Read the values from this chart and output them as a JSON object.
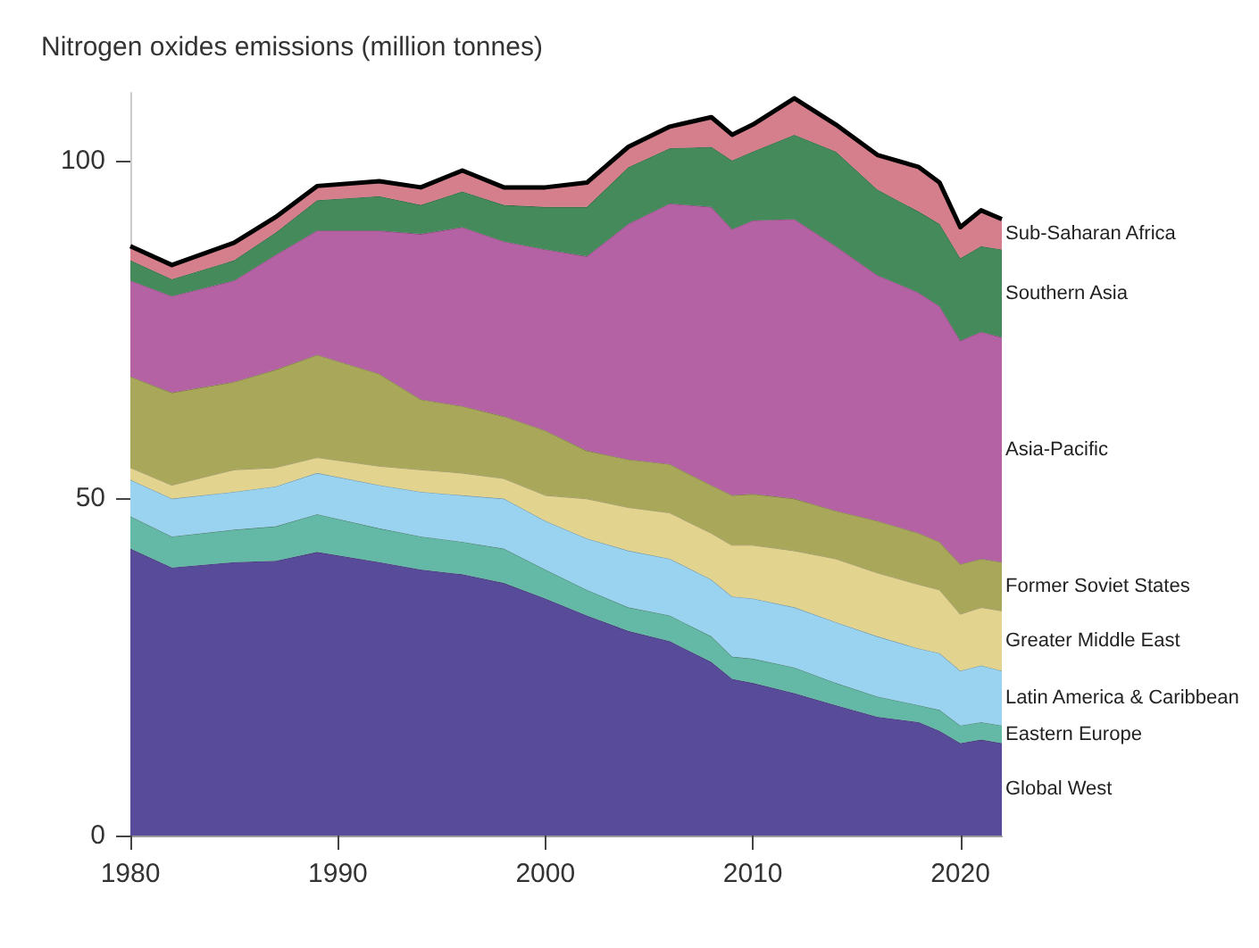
{
  "chart_data": {
    "type": "area",
    "stacked": true,
    "title": "Nitrogen oxides emissions (million tonnes)",
    "x": [
      1980,
      1982,
      1985,
      1987,
      1989,
      1992,
      1994,
      1996,
      1998,
      2000,
      2002,
      2004,
      2006,
      2008,
      2009,
      2010,
      2012,
      2014,
      2016,
      2018,
      2019,
      2020,
      2021,
      2022
    ],
    "xlim": [
      1980,
      2022
    ],
    "xticks": [
      1980,
      1990,
      2000,
      2010,
      2020
    ],
    "ylim": [
      0,
      110
    ],
    "yticks": [
      0,
      50,
      100
    ],
    "grid": false,
    "series": [
      {
        "name": "Global West",
        "color": "#574b9a",
        "values": [
          42.5,
          39.7,
          40.5,
          40.7,
          42,
          40.5,
          39.4,
          38.7,
          37.4,
          35.1,
          32.6,
          30.3,
          28.8,
          25.7,
          23.2,
          22.6,
          21.1,
          19.3,
          17.6,
          16.8,
          15.5,
          13.7,
          14.2,
          13.7
        ]
      },
      {
        "name": "Eastern Europe",
        "color": "#64b8a6",
        "values": [
          4.8,
          4.6,
          4.8,
          5.1,
          5.6,
          5,
          4.9,
          4.8,
          5.1,
          4.3,
          3.8,
          3.5,
          3.8,
          3.8,
          3.3,
          3.6,
          3.8,
          3.3,
          3,
          2.5,
          3.1,
          2.6,
          2.6,
          2.6
        ]
      },
      {
        "name": "Latin America & Caribbean",
        "color": "#9ad3f0",
        "values": [
          5.4,
          5.6,
          5.6,
          5.9,
          6.1,
          6.4,
          6.6,
          6.9,
          7.4,
          7.2,
          7.6,
          8.4,
          8.4,
          8.4,
          8.9,
          8.9,
          8.9,
          9,
          8.9,
          8.4,
          8.4,
          8.1,
          8.4,
          8.1
        ]
      },
      {
        "name": "Greater Middle East",
        "color": "#e2d48e",
        "values": [
          1.8,
          2,
          3.3,
          2.8,
          2.3,
          2.8,
          3.3,
          3.3,
          3,
          3.8,
          5.9,
          6.4,
          6.8,
          6.9,
          7.6,
          7.9,
          8.4,
          9.4,
          9.4,
          9.5,
          9.4,
          8.4,
          8.6,
          8.9
        ]
      },
      {
        "name": "Former Soviet States",
        "color": "#a8a75a",
        "values": [
          13.5,
          13.7,
          13,
          14.5,
          15.2,
          13.7,
          10.4,
          9.9,
          9.2,
          9.6,
          7.1,
          7.1,
          7.2,
          7.1,
          7.4,
          7.6,
          7.7,
          7.1,
          7.7,
          7.6,
          7.1,
          7.4,
          7.2,
          7.2
        ]
      },
      {
        "name": "Asia-Pacific",
        "color": "#b562a5",
        "values": [
          14.2,
          14.3,
          15,
          17,
          18.4,
          21.2,
          24.5,
          26.5,
          25.9,
          26.8,
          28.8,
          34.9,
          38.6,
          41.2,
          39.4,
          40.5,
          41.4,
          39.2,
          36.4,
          35.6,
          34.9,
          33.1,
          33.6,
          33.3
        ]
      },
      {
        "name": "Southern Asia",
        "color": "#458a5a",
        "values": [
          3,
          2.5,
          3,
          3.3,
          4.5,
          5.1,
          4.3,
          5.3,
          5.4,
          6.3,
          7.3,
          8.4,
          8.2,
          8.9,
          10.2,
          10.2,
          12.5,
          14,
          12.7,
          12,
          12.2,
          12.2,
          12.7,
          13
        ]
      },
      {
        "name": "Sub-Saharan Africa",
        "color": "#d47f8b",
        "values": [
          2.1,
          2.1,
          2.6,
          2.3,
          2.1,
          2.2,
          2.6,
          3.1,
          2.6,
          2.9,
          3.6,
          3,
          3.2,
          4.4,
          3.8,
          4,
          5.4,
          4,
          5.1,
          6.6,
          6.1,
          4.6,
          5.3,
          4.5
        ]
      }
    ]
  }
}
